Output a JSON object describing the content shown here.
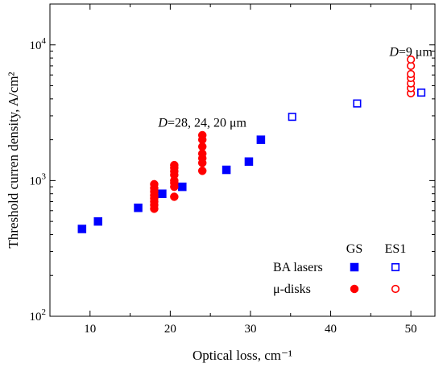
{
  "chart_data": {
    "type": "scatter",
    "xlabel": "Optical loss, cm⁻¹",
    "ylabel": "Threshold curren density, A/cm²",
    "x_ticks": [
      10,
      20,
      30,
      40,
      50
    ],
    "xlim": [
      5,
      53
    ],
    "ylim": [
      100,
      20000
    ],
    "y_scale": "log",
    "y_ticks": [
      {
        "value": 100,
        "base": "10",
        "exp": "2"
      },
      {
        "value": 1000,
        "base": "10",
        "exp": "3"
      },
      {
        "value": 10000,
        "base": "10",
        "exp": "4"
      }
    ],
    "grid": false,
    "legend": {
      "placement": "bottom-right",
      "column_headers": [
        "GS",
        "ES1"
      ],
      "row_labels": [
        "BA lasers",
        "μ-disks"
      ]
    },
    "annotations": [
      {
        "italic": "D",
        "text": "=28, 24, 20 μm",
        "x": 24,
        "y": 2500
      },
      {
        "italic": "D",
        "text": "=9 μm",
        "x": 50,
        "y": 8300
      }
    ],
    "series": [
      {
        "group": "BA lasers",
        "state": "GS",
        "marker": "square",
        "filled": true,
        "color": "#0000ff",
        "points": [
          [
            9,
            440
          ],
          [
            11,
            500
          ],
          [
            16,
            630
          ],
          [
            19,
            800
          ],
          [
            21.5,
            900
          ],
          [
            27,
            1200
          ],
          [
            29.8,
            1380
          ],
          [
            31.3,
            2000
          ]
        ]
      },
      {
        "group": "BA lasers",
        "state": "ES1",
        "marker": "square",
        "filled": false,
        "color": "#0000ff",
        "points": [
          [
            35.2,
            2950
          ],
          [
            43.3,
            3700
          ],
          [
            51.3,
            4450
          ]
        ]
      },
      {
        "group": "μ-disks",
        "state": "GS",
        "marker": "circle",
        "filled": true,
        "color": "#ff0000",
        "points": [
          [
            18,
            620
          ],
          [
            18,
            660
          ],
          [
            18,
            700
          ],
          [
            18,
            740
          ],
          [
            18,
            780
          ],
          [
            18,
            830
          ],
          [
            18,
            880
          ],
          [
            18,
            940
          ],
          [
            20.5,
            760
          ],
          [
            20.5,
            900
          ],
          [
            20.5,
            960
          ],
          [
            20.5,
            1000
          ],
          [
            20.5,
            1100
          ],
          [
            20.5,
            1170
          ],
          [
            20.5,
            1240
          ],
          [
            20.5,
            1300
          ],
          [
            24,
            1180
          ],
          [
            24,
            1350
          ],
          [
            24,
            1460
          ],
          [
            24,
            1580
          ],
          [
            24,
            1780
          ],
          [
            24,
            2000
          ],
          [
            24,
            2160
          ]
        ]
      },
      {
        "group": "μ-disks",
        "state": "ES1",
        "marker": "circle",
        "filled": false,
        "color": "#ff0000",
        "points": [
          [
            50,
            4400
          ],
          [
            50,
            4800
          ],
          [
            50,
            5200
          ],
          [
            50,
            5700
          ],
          [
            50,
            6100
          ],
          [
            50,
            7000
          ],
          [
            50,
            7800
          ]
        ]
      }
    ]
  }
}
